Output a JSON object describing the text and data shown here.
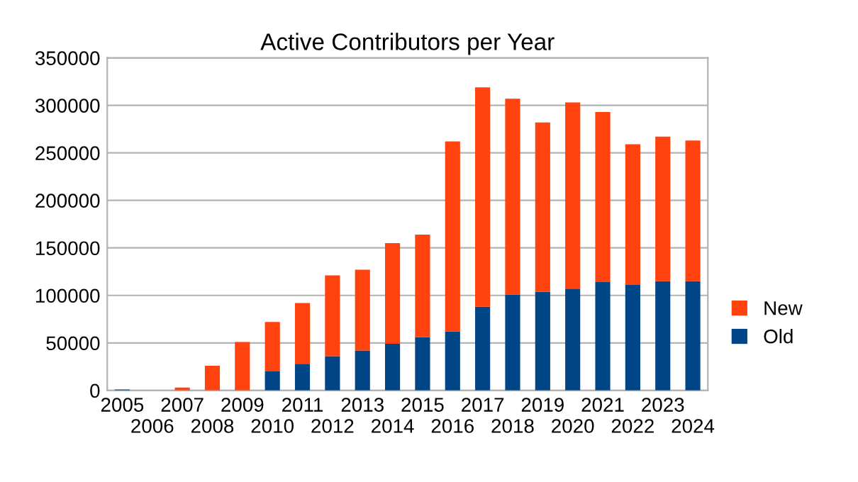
{
  "chart_data": {
    "type": "bar",
    "title": "Active Contributors per Year",
    "categories": [
      "2005",
      "2006",
      "2007",
      "2008",
      "2009",
      "2010",
      "2011",
      "2012",
      "2013",
      "2014",
      "2015",
      "2016",
      "2017",
      "2018",
      "2019",
      "2020",
      "2021",
      "2022",
      "2023",
      "2024"
    ],
    "stacked": true,
    "series": [
      {
        "name": "Old",
        "color": "#004586",
        "values": [
          1000,
          0,
          0,
          0,
          0,
          20000,
          28000,
          36000,
          42000,
          49000,
          56000,
          62000,
          88000,
          101000,
          104000,
          107000,
          114000,
          111000,
          115000,
          115000
        ]
      },
      {
        "name": "New",
        "color": "#ff420e",
        "values": [
          0,
          0,
          3000,
          26000,
          51000,
          52000,
          64000,
          85000,
          85000,
          106000,
          108000,
          200000,
          231000,
          206000,
          178000,
          196000,
          179000,
          148000,
          152000,
          148000
        ]
      }
    ],
    "ylim": [
      0,
      350000
    ],
    "yticks": [
      0,
      50000,
      100000,
      150000,
      200000,
      250000,
      300000,
      350000
    ],
    "grid": "y",
    "legend": "right"
  }
}
